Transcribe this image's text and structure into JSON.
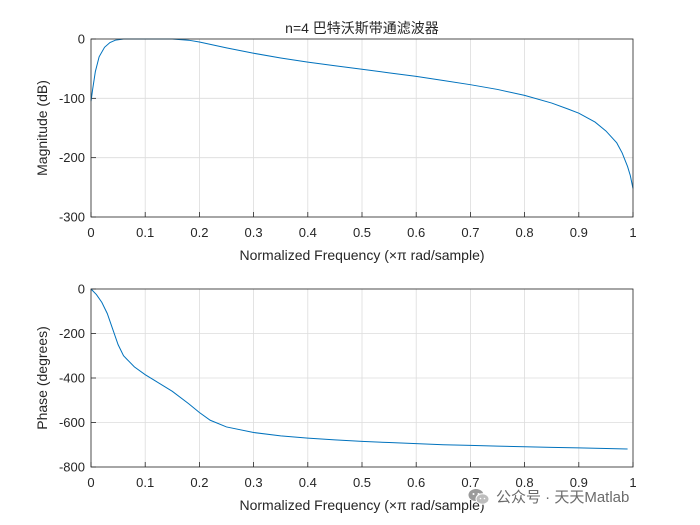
{
  "chart_data": [
    {
      "type": "line",
      "title": "n=4 巴特沃斯带通滤波器",
      "xlabel": "Normalized Frequency  (×π rad/sample)",
      "ylabel": "Magnitude (dB)",
      "xlim": [
        0,
        1
      ],
      "ylim": [
        -300,
        0
      ],
      "xticks": [
        "0",
        "0.1",
        "0.2",
        "0.3",
        "0.4",
        "0.5",
        "0.6",
        "0.7",
        "0.8",
        "0.9",
        "1"
      ],
      "yticks": [
        "0",
        "-100",
        "-200",
        "-300"
      ],
      "grid": true,
      "color": "#0072BD",
      "x": [
        0,
        0.003,
        0.008,
        0.015,
        0.025,
        0.035,
        0.045,
        0.06,
        0.08,
        0.1,
        0.12,
        0.15,
        0.18,
        0.2,
        0.25,
        0.3,
        0.35,
        0.4,
        0.45,
        0.5,
        0.55,
        0.6,
        0.65,
        0.7,
        0.75,
        0.8,
        0.85,
        0.88,
        0.9,
        0.93,
        0.95,
        0.97,
        0.98,
        0.99,
        0.995,
        1.0
      ],
      "y": [
        -105,
        -85,
        -55,
        -30,
        -14,
        -6,
        -2,
        0,
        0,
        0,
        0,
        0,
        -2,
        -5,
        -15,
        -24,
        -32,
        -39,
        -45,
        -51,
        -57,
        -63,
        -70,
        -77,
        -85,
        -95,
        -108,
        -118,
        -125,
        -140,
        -155,
        -175,
        -192,
        -215,
        -230,
        -252
      ]
    },
    {
      "type": "line",
      "title": "",
      "xlabel": "Normalized Frequency  (×π rad/sample)",
      "ylabel": "Phase (degrees)",
      "xlim": [
        0,
        1
      ],
      "ylim": [
        -800,
        0
      ],
      "xticks": [
        "0",
        "0.1",
        "0.2",
        "0.3",
        "0.4",
        "0.5",
        "0.6",
        "0.7",
        "0.8",
        "0.9",
        "1"
      ],
      "yticks": [
        "0",
        "-200",
        "-400",
        "-600",
        "-800"
      ],
      "grid": true,
      "color": "#0072BD",
      "x": [
        0,
        0.01,
        0.02,
        0.03,
        0.04,
        0.05,
        0.06,
        0.08,
        0.1,
        0.12,
        0.15,
        0.18,
        0.2,
        0.22,
        0.25,
        0.3,
        0.35,
        0.4,
        0.45,
        0.5,
        0.55,
        0.6,
        0.65,
        0.7,
        0.75,
        0.8,
        0.85,
        0.9,
        0.95,
        0.99
      ],
      "y": [
        0,
        -25,
        -60,
        -110,
        -180,
        -250,
        -300,
        -350,
        -385,
        -415,
        -460,
        -515,
        -555,
        -590,
        -620,
        -645,
        -660,
        -670,
        -678,
        -685,
        -690,
        -695,
        -700,
        -703,
        -706,
        -709,
        -712,
        -714,
        -717,
        -719
      ]
    }
  ],
  "watermark": {
    "icon": "wechat-icon",
    "text": "公众号 · 天天Matlab"
  }
}
